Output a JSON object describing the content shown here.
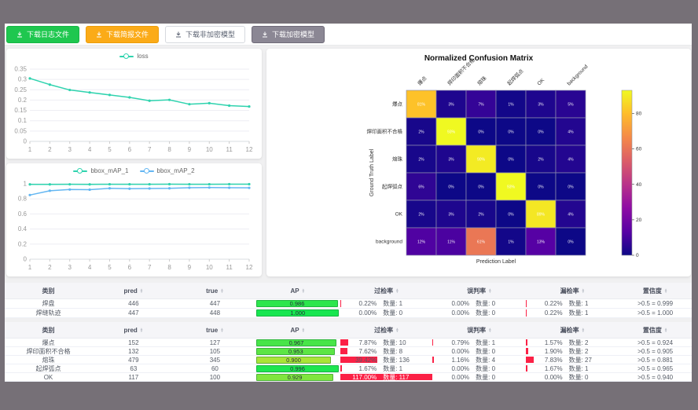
{
  "toolbar": {
    "buttons": [
      {
        "label": "下载日志文件",
        "icon": "download",
        "style": "green"
      },
      {
        "label": "下载简报文件",
        "icon": "download",
        "style": "orange"
      },
      {
        "label": "下载非加密模型",
        "icon": "download",
        "style": "white"
      },
      {
        "label": "下载加密模型",
        "icon": "download",
        "style": "dark"
      }
    ]
  },
  "charts": {
    "loss": {
      "type": "line",
      "x": [
        1,
        2,
        3,
        4,
        5,
        6,
        7,
        8,
        9,
        10,
        11,
        12
      ],
      "yticks": [
        0,
        0.05,
        0.1,
        0.15,
        0.2,
        0.25,
        0.3,
        0.35
      ],
      "series": [
        {
          "name": "loss",
          "color": "#2fd3ae",
          "values": [
            0.305,
            0.275,
            0.249,
            0.237,
            0.225,
            0.213,
            0.197,
            0.201,
            0.18,
            0.185,
            0.173,
            0.169
          ]
        }
      ]
    },
    "bbox_map": {
      "type": "line",
      "x": [
        1,
        2,
        3,
        4,
        5,
        6,
        7,
        8,
        9,
        10,
        11,
        12
      ],
      "yticks": [
        0,
        0.2,
        0.4,
        0.6,
        0.8,
        1
      ],
      "series": [
        {
          "name": "bbox_mAP_1",
          "color": "#2fd3ae",
          "values": [
            0.992,
            0.992,
            0.993,
            0.992,
            0.994,
            0.994,
            0.994,
            0.995,
            0.994,
            0.994,
            0.995,
            0.995
          ]
        },
        {
          "name": "bbox_mAP_2",
          "color": "#63b6f2",
          "values": [
            0.851,
            0.908,
            0.924,
            0.922,
            0.94,
            0.935,
            0.938,
            0.94,
            0.948,
            0.95,
            0.948,
            0.946
          ]
        }
      ]
    }
  },
  "confusion_matrix": {
    "type": "heatmap",
    "title": "Normalized Confusion Matrix",
    "xlabel": "Prediction Label",
    "ylabel": "Ground Truth Label",
    "labels": [
      "爆点",
      "焊印面积不合格",
      "熔珠",
      "起焊弧点",
      "OK",
      "background"
    ],
    "rows": [
      [
        81,
        3,
        7,
        1,
        3,
        5
      ],
      [
        2,
        93,
        0,
        0,
        0,
        4
      ],
      [
        2,
        3,
        90,
        0,
        2,
        4
      ],
      [
        6,
        0,
        0,
        93,
        0,
        0
      ],
      [
        2,
        3,
        2,
        0,
        89,
        4
      ],
      [
        12,
        11,
        61,
        1,
        13,
        0
      ]
    ],
    "unit": "%",
    "vmax": 93,
    "colorbar_ticks": [
      0,
      20,
      40,
      60,
      80
    ]
  },
  "tables": {
    "headers": [
      "类别",
      "pred",
      "true",
      "AP",
      "过检率",
      "误判率",
      "漏检率",
      "置信度"
    ],
    "sortable": [
      false,
      true,
      true,
      true,
      true,
      true,
      true,
      true
    ],
    "count_label": "数量",
    "groups": [
      {
        "rows": [
          {
            "name": "焊盘",
            "pred": 446,
            "truth": 447,
            "ap": "0.986",
            "over": {
              "pct": "0.22%",
              "count": 1
            },
            "mis": {
              "pct": "0.00%",
              "count": 0
            },
            "miss": {
              "pct": "0.22%",
              "count": 1
            },
            "conf": ">0.5 = 0.999"
          },
          {
            "name": "焊缝轨迹",
            "pred": 447,
            "truth": 448,
            "ap": "1.000",
            "over": {
              "pct": "0.00%",
              "count": 0
            },
            "mis": {
              "pct": "0.00%",
              "count": 0
            },
            "miss": {
              "pct": "0.22%",
              "count": 1
            },
            "conf": ">0.5 = 1.000"
          }
        ]
      },
      {
        "rows": [
          {
            "name": "爆点",
            "pred": 152,
            "truth": 127,
            "ap": "0.967",
            "over": {
              "pct": "7.87%",
              "count": 10
            },
            "mis": {
              "pct": "0.79%",
              "count": 1
            },
            "miss": {
              "pct": "1.57%",
              "count": 2
            },
            "conf": ">0.5 = 0.924"
          },
          {
            "name": "焊印面积不合格",
            "pred": 132,
            "truth": 105,
            "ap": "0.953",
            "over": {
              "pct": "7.62%",
              "count": 8
            },
            "mis": {
              "pct": "0.00%",
              "count": 0
            },
            "miss": {
              "pct": "1.90%",
              "count": 2
            },
            "conf": ">0.5 = 0.905"
          },
          {
            "name": "熔珠",
            "pred": 479,
            "truth": 345,
            "ap": "0.900",
            "over": {
              "pct": "39.42%",
              "count": 136
            },
            "mis": {
              "pct": "1.16%",
              "count": 4
            },
            "miss": {
              "pct": "7.83%",
              "count": 27
            },
            "conf": ">0.5 = 0.881"
          },
          {
            "name": "起焊弧点",
            "pred": 63,
            "truth": 60,
            "ap": "0.996",
            "over": {
              "pct": "1.67%",
              "count": 1
            },
            "mis": {
              "pct": "0.00%",
              "count": 0
            },
            "miss": {
              "pct": "1.67%",
              "count": 1
            },
            "conf": ">0.5 = 0.965"
          },
          {
            "name": "OK",
            "pred": 117,
            "truth": 100,
            "ap": "0.929",
            "over": {
              "pct": "117.00%",
              "count": 117
            },
            "mis": {
              "pct": "0.00%",
              "count": 0
            },
            "miss": {
              "pct": "0.00%",
              "count": 0
            },
            "conf": ">0.5 = 0.940"
          }
        ]
      }
    ]
  }
}
